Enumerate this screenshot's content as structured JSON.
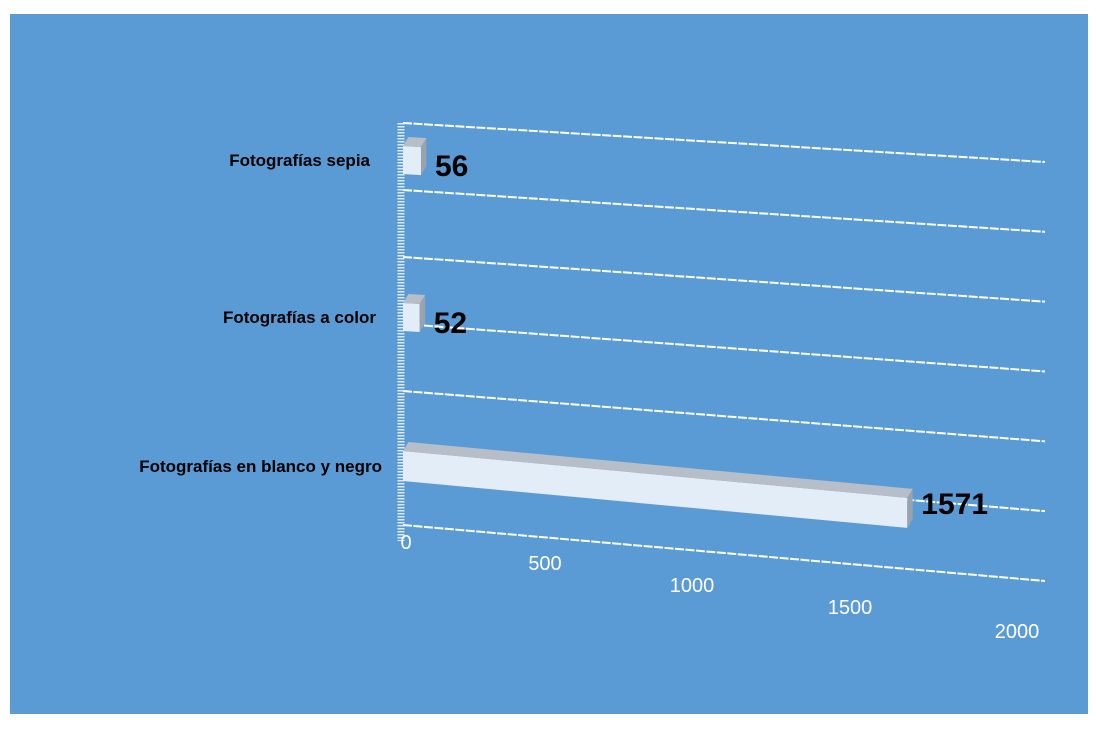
{
  "chart_data": {
    "type": "bar",
    "orientation": "horizontal",
    "style": "3d-perspective",
    "categories": [
      "Fotografías sepia",
      "Fotografías a color",
      "Fotografías en blanco y negro"
    ],
    "values": [
      56,
      52,
      1571
    ],
    "value_labels": [
      "56",
      "52",
      "1571"
    ],
    "xlim": [
      0,
      2000
    ],
    "ticks": [
      0,
      500,
      1000,
      1500,
      2000
    ],
    "tick_labels": [
      "0",
      "500",
      "1000",
      "1500",
      "2000"
    ],
    "grid": true,
    "legend": "none",
    "title": "",
    "xlabel": "",
    "ylabel": ""
  },
  "colors": {
    "background": "#5b9bd5",
    "gridline": "#ffffff",
    "bar_front": "#e3edf8",
    "bar_top": "#b7bec7",
    "bar_side": "#9aa3ad",
    "text": "#000000",
    "tick_text": "#ffffff"
  }
}
